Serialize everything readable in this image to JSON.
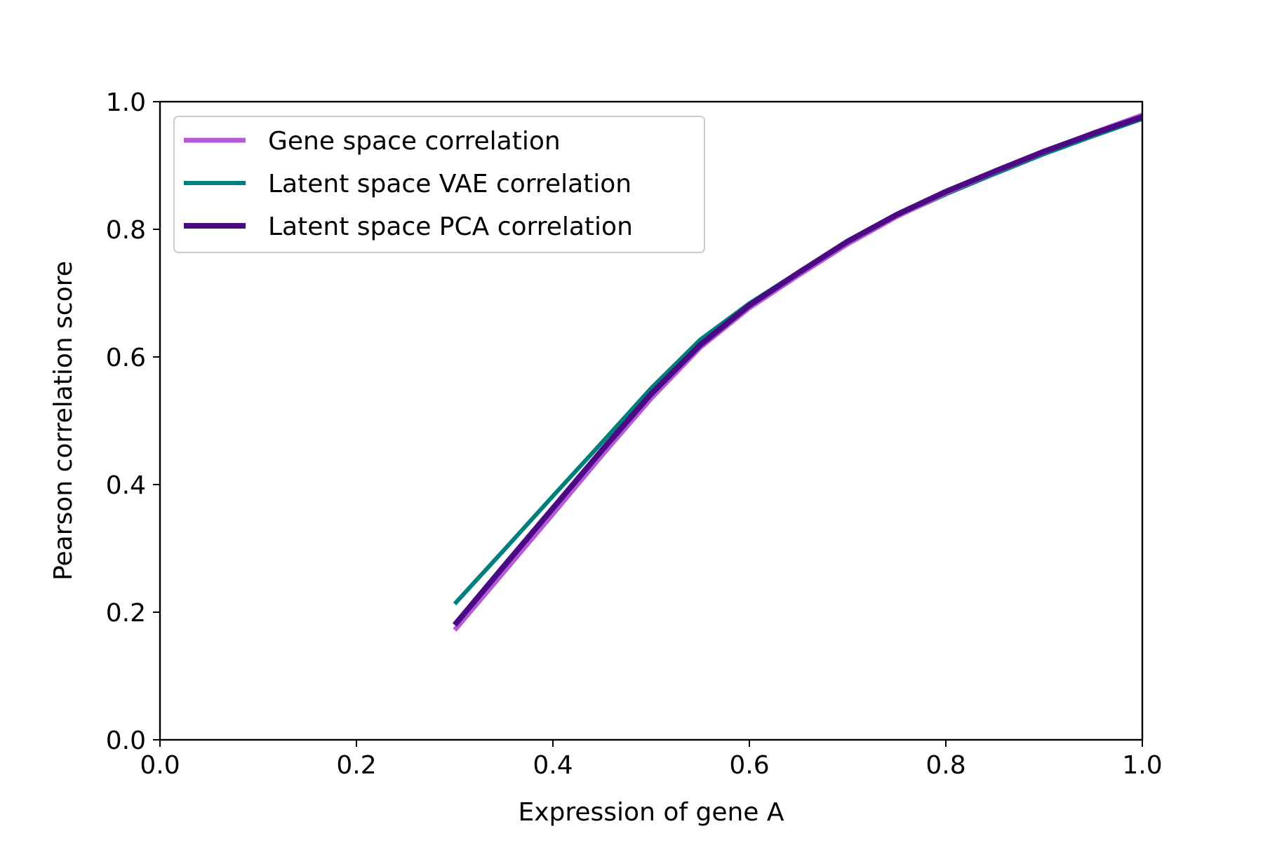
{
  "chart_data": {
    "type": "line",
    "title": "",
    "xlabel": "Expression of gene A",
    "ylabel": "Pearson correlation score",
    "xlim": [
      0.0,
      1.0
    ],
    "ylim": [
      0.0,
      1.0
    ],
    "xticks": [
      "0.0",
      "0.2",
      "0.4",
      "0.6",
      "0.8",
      "1.0"
    ],
    "yticks": [
      "0.0",
      "0.2",
      "0.4",
      "0.6",
      "0.8",
      "1.0"
    ],
    "grid": false,
    "legend_position": "top-left",
    "series": [
      {
        "name": "Gene space correlation",
        "color": "#b65bd8",
        "x": [
          0.3,
          0.35,
          0.4,
          0.45,
          0.5,
          0.55,
          0.6,
          0.65,
          0.7,
          0.75,
          0.8,
          0.85,
          0.9,
          0.95,
          1.0
        ],
        "y": [
          0.172,
          0.263,
          0.354,
          0.446,
          0.535,
          0.615,
          0.677,
          0.728,
          0.777,
          0.82,
          0.857,
          0.89,
          0.921,
          0.951,
          0.979
        ]
      },
      {
        "name": "Latent space VAE correlation",
        "color": "#00807c",
        "x": [
          0.3,
          0.35,
          0.4,
          0.45,
          0.5,
          0.55,
          0.6,
          0.65,
          0.7,
          0.75,
          0.8,
          0.85,
          0.9,
          0.95,
          1.0
        ],
        "y": [
          0.213,
          0.297,
          0.382,
          0.466,
          0.551,
          0.627,
          0.684,
          0.733,
          0.779,
          0.82,
          0.855,
          0.887,
          0.918,
          0.946,
          0.973
        ]
      },
      {
        "name": "Latent space PCA correlation",
        "color": "#4b0a84",
        "x": [
          0.3,
          0.35,
          0.4,
          0.45,
          0.5,
          0.55,
          0.6,
          0.65,
          0.7,
          0.75,
          0.8,
          0.85,
          0.9,
          0.95,
          1.0
        ],
        "y": [
          0.18,
          0.272,
          0.363,
          0.454,
          0.542,
          0.619,
          0.681,
          0.732,
          0.781,
          0.823,
          0.859,
          0.891,
          0.922,
          0.95,
          0.976
        ]
      }
    ]
  }
}
